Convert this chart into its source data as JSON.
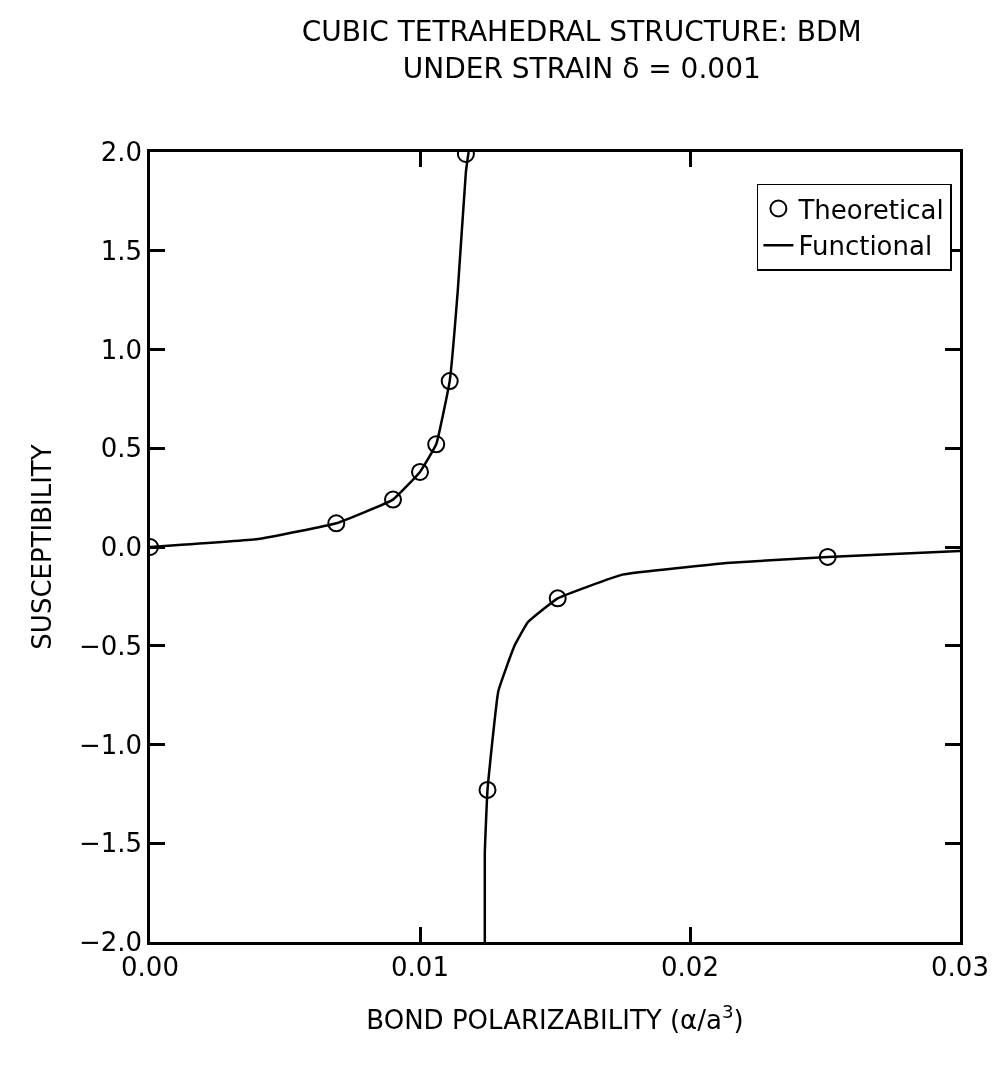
{
  "chart_data": {
    "type": "scatter",
    "title": "CUBIC TETRAHEDRAL STRUCTURE: BDM",
    "subtitle": "UNDER STRAIN δ = 0.001",
    "xlabel": "BOND POLARIZABILITY (α/a$^{3}$)",
    "ylabel": "SUSCEPTIBILITY",
    "xlim": [
      0,
      0.03
    ],
    "ylim": [
      -2.0,
      2.0
    ],
    "xticks": [
      {
        "value": 0,
        "label": "0.00"
      },
      0.01,
      0.02,
      0.03
    ],
    "yticks": [
      {
        "value": -2,
        "label": "−2.0"
      },
      {
        "value": -1.5,
        "label": "−1.5"
      },
      {
        "value": -1,
        "label": "−1.0"
      },
      {
        "value": -0.5,
        "label": "−0.5"
      },
      {
        "value": 0,
        "label": "0.0"
      },
      0.5,
      {
        "value": 1,
        "label": "1.0"
      },
      1.5,
      {
        "value": 2,
        "label": "2.0"
      }
    ],
    "legend": "top right",
    "series": [
      {
        "name": "Theoretical",
        "marker": "circle",
        "color": "#000000",
        "x": [
          0,
          0.0069,
          0.009,
          0.01,
          0.0106,
          0.0111,
          0.0117,
          0.0125,
          0.0151,
          0.0251
        ],
        "values": [
          0,
          0.12,
          0.24,
          0.38,
          0.52,
          0.84,
          1.99,
          -1.23,
          -0.26,
          -0.05
        ]
      },
      {
        "name": "Functional",
        "type": "line",
        "marker": "none",
        "line_style": "solid",
        "color": "#000000",
        "x": [
          0,
          0.004,
          0.0069,
          0.009,
          0.01,
          0.0106,
          0.0111,
          0.0114,
          0.0117,
          0.0118,
          null,
          0.0124,
          0.0124,
          0.0125,
          0.0129,
          0.0135,
          0.014,
          0.0151,
          0.0175,
          0.0215,
          0.0251,
          0.03
        ],
        "values": [
          0,
          0.04,
          0.12,
          0.24,
          0.38,
          0.52,
          0.84,
          1.3,
          1.9,
          2.0,
          null,
          -2.0,
          -1.55,
          -1.23,
          -0.73,
          -0.5,
          -0.38,
          -0.26,
          -0.14,
          -0.08,
          -0.05,
          -0.02
        ]
      }
    ]
  }
}
